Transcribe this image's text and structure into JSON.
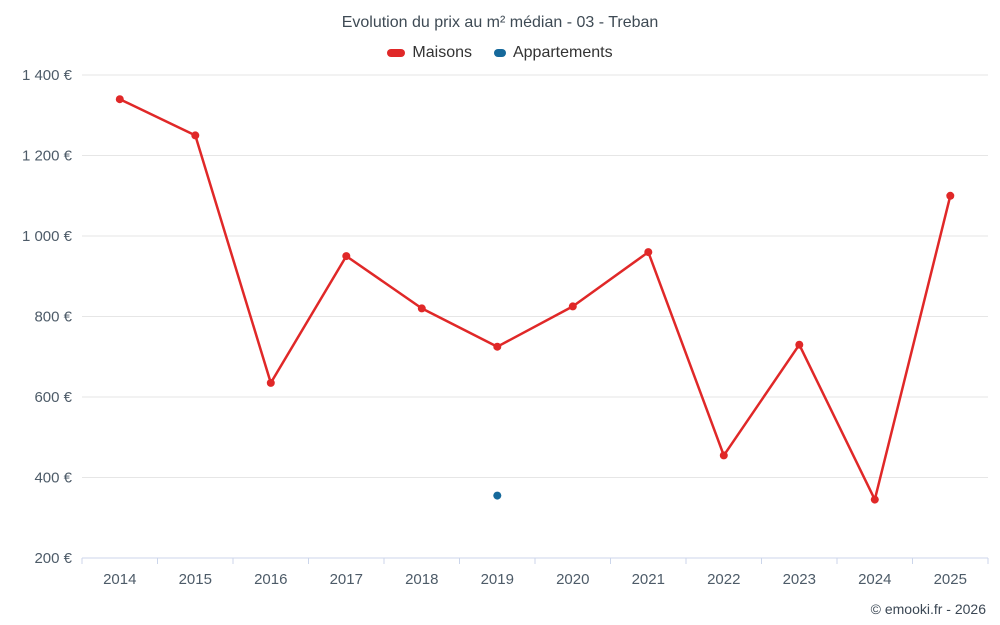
{
  "title": "Evolution du prix au m² médian - 03 - Treban",
  "footer": {
    "credit": "© emooki.fr - 2026"
  },
  "legend": [
    {
      "label": "Maisons",
      "color": "#e02828"
    },
    {
      "label": "Appartements",
      "color": "#16699b"
    }
  ],
  "chart_data": {
    "type": "line",
    "title": "Evolution du prix au m² médian - 03 - Treban",
    "categories": [
      "2014",
      "2015",
      "2016",
      "2017",
      "2018",
      "2019",
      "2020",
      "2021",
      "2022",
      "2023",
      "2024",
      "2025"
    ],
    "series": [
      {
        "name": "Maisons",
        "color": "#e02828",
        "values": [
          1340,
          1250,
          635,
          950,
          820,
          725,
          825,
          960,
          455,
          730,
          345,
          1100
        ]
      },
      {
        "name": "Appartements",
        "color": "#16699b",
        "values": [
          null,
          null,
          null,
          null,
          null,
          355,
          null,
          null,
          null,
          null,
          null,
          null
        ]
      }
    ],
    "xlabel": "",
    "ylabel": "",
    "ylim": [
      200,
      1400
    ],
    "yticks": {
      "values": [
        200,
        400,
        600,
        800,
        1000,
        1200,
        1400
      ],
      "labels": [
        "200 €",
        "400 €",
        "600 €",
        "800 €",
        "1 000 €",
        "1 200 €",
        "1 400 €"
      ]
    },
    "grid": true,
    "legend_position": "top"
  }
}
